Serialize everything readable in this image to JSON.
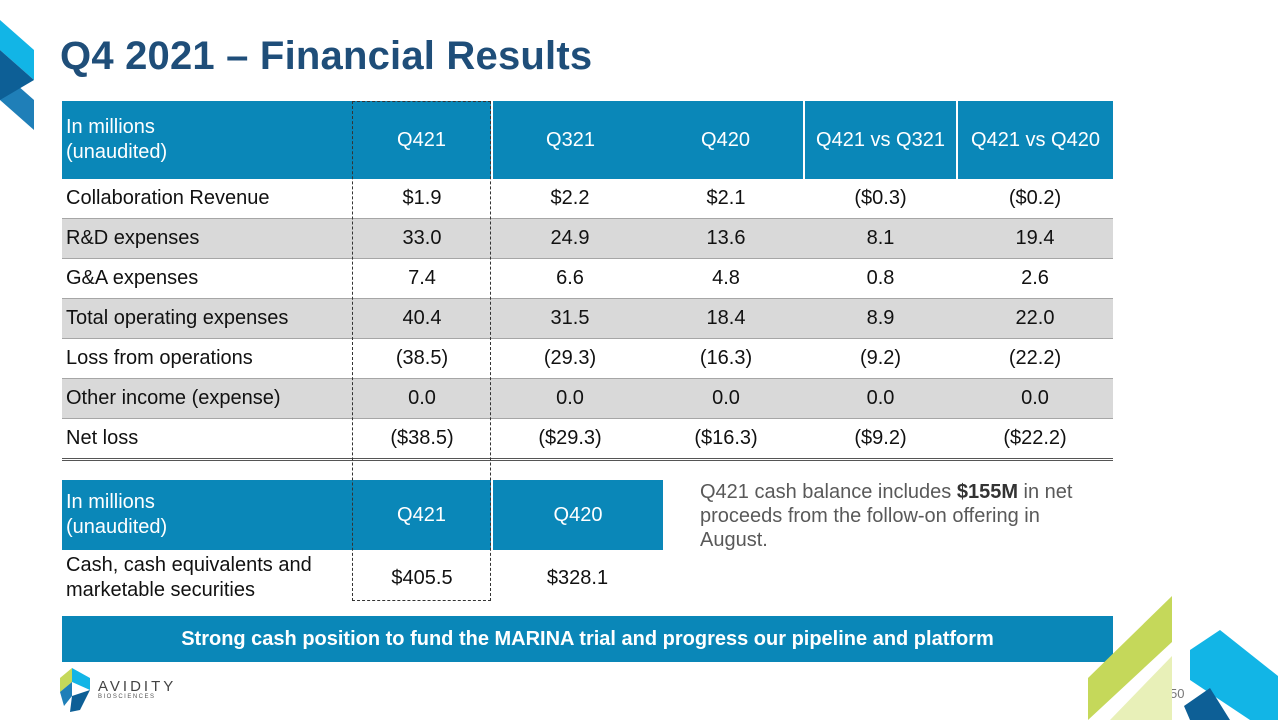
{
  "title": "Q4 2021 – Financial Results",
  "table1": {
    "header": [
      "In millions\n(unaudited)",
      "Q421",
      "Q321",
      "Q420",
      "Q421 vs Q321",
      "Q421 vs Q420"
    ],
    "rows": [
      [
        "Collaboration Revenue",
        "$1.9",
        "$2.2",
        "$2.1",
        "($0.3)",
        "($0.2)"
      ],
      [
        "R&D expenses",
        "33.0",
        "24.9",
        "13.6",
        "8.1",
        "19.4"
      ],
      [
        "G&A expenses",
        "7.4",
        "6.6",
        "4.8",
        "0.8",
        "2.6"
      ],
      [
        "Total operating expenses",
        "40.4",
        "31.5",
        "18.4",
        "8.9",
        "22.0"
      ],
      [
        "Loss from operations",
        "(38.5)",
        "(29.3)",
        "(16.3)",
        "(9.2)",
        "(22.2)"
      ],
      [
        "Other income (expense)",
        "0.0",
        "0.0",
        "0.0",
        "0.0",
        "0.0"
      ],
      [
        "Net loss",
        "($38.5)",
        "($29.3)",
        "($16.3)",
        "($9.2)",
        "($22.2)"
      ]
    ]
  },
  "table2": {
    "header": [
      "In millions\n(unaudited)",
      "Q421",
      "Q420"
    ],
    "rows": [
      [
        "Cash, cash equivalents and\nmarketable securities",
        "$405.5",
        "$328.1"
      ]
    ]
  },
  "note": {
    "prefix": "Q421 cash balance includes ",
    "bold": "$155M",
    "suffix": " in net proceeds from the follow-on offering in August."
  },
  "banner": "Strong cash position to fund the MARINA trial and progress our pipeline and platform",
  "logo": {
    "name": "AVIDITY",
    "sub": "BIOSCIENCES"
  },
  "page_number": "50",
  "colors": {
    "title": "#1f4e79",
    "header": "#0a87b8",
    "shade": "#d9d9d9",
    "lime": "#c5d85a",
    "aqua": "#12b5e6"
  }
}
